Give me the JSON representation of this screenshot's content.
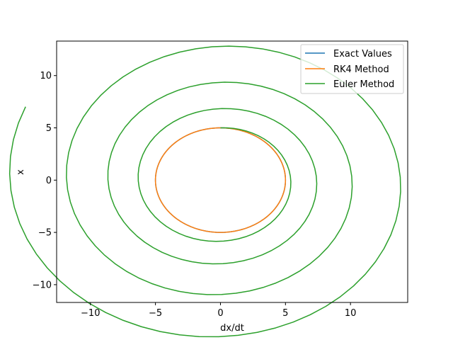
{
  "chart_data": {
    "type": "line",
    "title": "",
    "xlabel": "dx/dt",
    "ylabel": "x",
    "xlim": [
      -12.6,
      14.4
    ],
    "ylim": [
      -11.7,
      13.3
    ],
    "xticks": [
      -10,
      -5,
      0,
      5,
      10
    ],
    "yticks": [
      -10,
      -5,
      0,
      5,
      10
    ],
    "tick_labels": {
      "x": [
        "−10",
        "−5",
        "0",
        "5",
        "10"
      ],
      "y": [
        "−10",
        "−5",
        "0",
        "5",
        "10"
      ]
    },
    "grid": false,
    "legend_position": "top-right",
    "series": [
      {
        "name": "Exact Values",
        "color": "#1f77b4",
        "kind": "circle",
        "radius": 5.0,
        "points": 200
      },
      {
        "name": "RK4 Method",
        "color": "#ff7f0e",
        "kind": "circle",
        "radius": 5.0,
        "points": 200
      },
      {
        "name": "Euler Method",
        "color": "#2ca02c",
        "kind": "spiral",
        "r0": 5.0,
        "growth_per_step": 0.005,
        "dtheta": 0.1,
        "steps": 240,
        "start_angle_deg": 90
      }
    ]
  }
}
